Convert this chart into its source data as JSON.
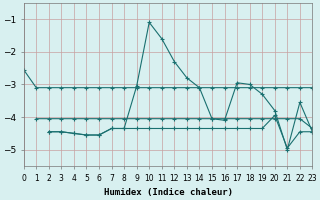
{
  "xlabel": "Humidex (Indice chaleur)",
  "bg_color": "#d8f0f0",
  "grid_color": "#c8a0a0",
  "line_color": "#1a7070",
  "xlim": [
    0,
    23
  ],
  "ylim": [
    -5.5,
    -0.5
  ],
  "yticks": [
    -5,
    -4,
    -3,
    -2,
    -1
  ],
  "xticks": [
    0,
    1,
    2,
    3,
    4,
    5,
    6,
    7,
    8,
    9,
    10,
    11,
    12,
    13,
    14,
    15,
    16,
    17,
    18,
    19,
    20,
    21,
    22,
    23
  ],
  "line1_x": [
    0,
    1,
    2,
    3,
    4,
    5,
    6,
    7,
    8,
    9,
    10,
    11,
    12,
    13,
    14,
    15,
    16,
    17,
    18,
    19,
    20,
    21,
    22,
    23
  ],
  "line1_y": [
    -2.55,
    -3.1,
    -3.1,
    -3.1,
    -3.1,
    -3.1,
    -3.1,
    -3.1,
    -3.1,
    -3.1,
    -3.1,
    -3.1,
    -3.1,
    -3.1,
    -3.1,
    -3.1,
    -3.1,
    -3.1,
    -3.1,
    -3.1,
    -3.1,
    -3.1,
    -3.1,
    -3.1
  ],
  "line2_x": [
    1,
    2,
    3,
    4,
    5,
    6,
    7,
    8,
    9,
    10,
    11,
    12,
    13,
    14,
    15,
    16,
    17,
    18,
    19,
    20,
    21,
    22,
    23
  ],
  "line2_y": [
    -4.05,
    -4.05,
    -4.05,
    -4.05,
    -4.05,
    -4.05,
    -4.05,
    -4.05,
    -4.05,
    -4.05,
    -4.05,
    -4.05,
    -4.05,
    -4.05,
    -4.05,
    -4.05,
    -4.05,
    -4.05,
    -4.05,
    -4.05,
    -4.05,
    -4.05,
    -4.35
  ],
  "line3_x": [
    2,
    3,
    4,
    5,
    6,
    7,
    8,
    9,
    10,
    11,
    12,
    13,
    14,
    15,
    16,
    17,
    18,
    19,
    20,
    21,
    22,
    23
  ],
  "line3_y": [
    -4.45,
    -4.45,
    -4.5,
    -4.55,
    -4.55,
    -4.35,
    -4.35,
    -3.05,
    -1.1,
    -1.6,
    -2.3,
    -2.8,
    -3.1,
    -4.05,
    -4.1,
    -2.95,
    -3.0,
    -3.3,
    -3.8,
    -5.0,
    -3.55,
    -4.45
  ],
  "line4_x": [
    2,
    3,
    4,
    5,
    6,
    7,
    8,
    9,
    10,
    11,
    12,
    13,
    14,
    15,
    16,
    17,
    18,
    19,
    20,
    21,
    22,
    23
  ],
  "line4_y": [
    -4.45,
    -4.45,
    -4.5,
    -4.55,
    -4.55,
    -4.35,
    -4.35,
    -4.35,
    -4.35,
    -4.35,
    -4.35,
    -4.35,
    -4.35,
    -4.35,
    -4.35,
    -4.35,
    -4.35,
    -4.35,
    -3.95,
    -4.95,
    -4.45,
    -4.45
  ]
}
